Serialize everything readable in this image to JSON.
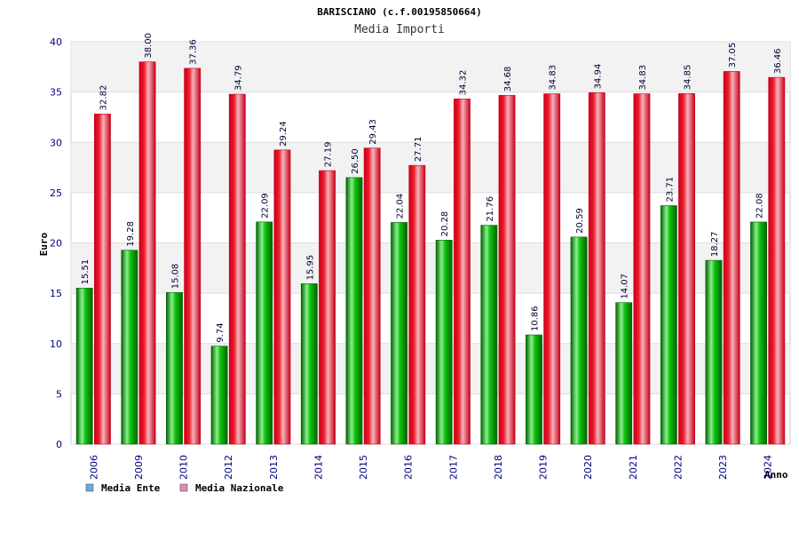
{
  "chart_data": {
    "type": "bar",
    "title": "BARISCIANO (c.f.00195850664)",
    "subtitle": "Media Importi",
    "xlabel": "Anno",
    "ylabel": "Euro",
    "ylim": [
      0,
      40
    ],
    "yticks": [
      0,
      5,
      10,
      15,
      20,
      25,
      30,
      35,
      40
    ],
    "categories": [
      "2006",
      "2009",
      "2010",
      "2012",
      "2013",
      "2014",
      "2015",
      "2016",
      "2017",
      "2018",
      "2019",
      "2020",
      "2021",
      "2022",
      "2023",
      "2024"
    ],
    "series": [
      {
        "name": "Media Ente",
        "values": [
          15.51,
          19.28,
          15.08,
          9.74,
          22.09,
          15.95,
          26.5,
          22.04,
          20.28,
          21.76,
          10.86,
          20.59,
          14.07,
          23.71,
          18.27,
          22.08
        ],
        "labels": [
          "15.51",
          "19.28",
          "15.08",
          "9.74",
          "22.09",
          "15.95",
          "26.50",
          "22.04",
          "20.28",
          "21.76",
          "10.86",
          "20.59",
          "14.07",
          "23.71",
          "18.27",
          "22.08"
        ]
      },
      {
        "name": "Media Nazionale",
        "values": [
          32.82,
          38.0,
          37.36,
          34.79,
          29.24,
          27.19,
          29.43,
          27.71,
          34.32,
          34.68,
          34.83,
          34.94,
          34.83,
          34.85,
          37.05,
          36.46
        ],
        "labels": [
          "32.82",
          "38.00",
          "37.36",
          "34.79",
          "29.24",
          "27.19",
          "29.43",
          "27.71",
          "34.32",
          "34.68",
          "34.83",
          "34.94",
          "34.83",
          "34.85",
          "37.05",
          "36.46"
        ]
      }
    ],
    "legend": [
      {
        "name": "Media Ente",
        "color": "#6fa8dc"
      },
      {
        "name": "Media Nazionale",
        "color": "#d88fb4"
      }
    ],
    "legend_position": "bottom-left",
    "grid": true
  },
  "colors": {
    "ente_light": "#8cf08c",
    "ente_mid": "#11c411",
    "ente_dark": "#006400",
    "naz_light": "#f6b4bc",
    "naz_mid": "#ee1c2c",
    "naz_dark": "#c8001a",
    "band": "#f2f2f2",
    "grid": "#dddddd"
  }
}
